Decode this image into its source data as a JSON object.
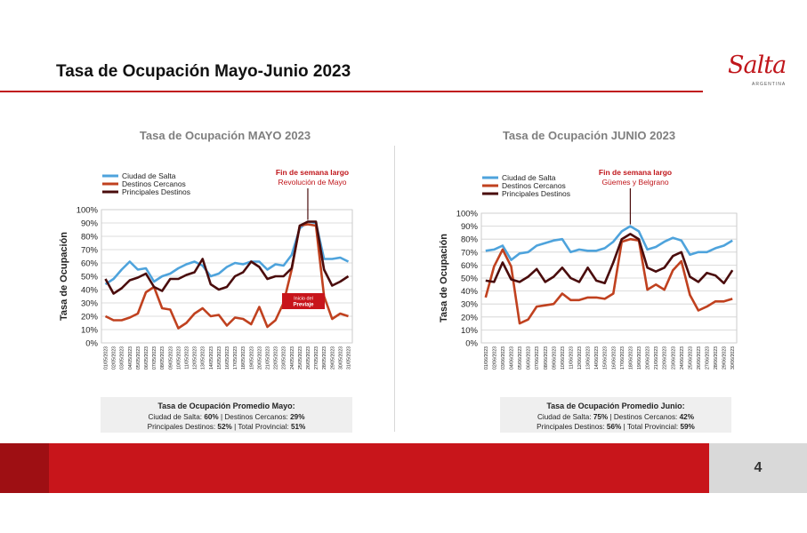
{
  "slide": {
    "title": "Tasa de Ocupación Mayo-Junio 2023",
    "page_number": "4",
    "logo_text": "Salta",
    "logo_subtext": "ARGENTINA",
    "colors": {
      "accent": "#c0161b",
      "footer": "#c8151b",
      "footer_dark": "#9e0f13"
    }
  },
  "chart_data": [
    {
      "type": "line",
      "title": "Tasa de Ocupación MAYO 2023",
      "ylabel": "Tasa de Ocupación",
      "ylim": [
        0,
        100
      ],
      "yticks": [
        "0%",
        "10%",
        "20%",
        "30%",
        "40%",
        "50%",
        "60%",
        "70%",
        "80%",
        "90%",
        "100%"
      ],
      "categories": [
        "01/05/2023",
        "02/05/2023",
        "03/05/2023",
        "04/05/2023",
        "05/05/2023",
        "06/05/2023",
        "07/05/2023",
        "08/05/2023",
        "09/05/2023",
        "10/05/2023",
        "11/05/2023",
        "12/05/2023",
        "13/05/2023",
        "14/05/2023",
        "15/05/2023",
        "16/05/2023",
        "17/05/2023",
        "18/05/2023",
        "19/05/2023",
        "20/05/2023",
        "21/05/2023",
        "22/05/2023",
        "23/05/2023",
        "24/05/2023",
        "25/05/2023",
        "26/05/2023",
        "27/05/2023",
        "28/05/2023",
        "29/05/2023",
        "30/05/2023",
        "31/05/2023"
      ],
      "series": [
        {
          "name": "Ciudad de Salta",
          "color": "#4ea3dc",
          "values": [
            44,
            48,
            55,
            61,
            55,
            56,
            46,
            50,
            52,
            56,
            59,
            61,
            58,
            50,
            52,
            57,
            60,
            59,
            61,
            61,
            55,
            59,
            58,
            66,
            86,
            91,
            90,
            63,
            63,
            64,
            61
          ]
        },
        {
          "name": "Destinos Cercanos",
          "color": "#c0411f",
          "values": [
            20,
            17,
            17,
            19,
            22,
            38,
            42,
            26,
            25,
            11,
            15,
            22,
            26,
            20,
            21,
            13,
            19,
            18,
            14,
            27,
            12,
            17,
            30,
            55,
            88,
            89,
            88,
            35,
            18,
            22,
            20
          ]
        },
        {
          "name": "Principales Destinos",
          "color": "#4a0c0c",
          "values": [
            48,
            37,
            41,
            47,
            49,
            52,
            42,
            39,
            48,
            48,
            51,
            53,
            63,
            44,
            40,
            42,
            50,
            53,
            61,
            57,
            48,
            50,
            50,
            56,
            88,
            91,
            91,
            55,
            43,
            46,
            50
          ]
        }
      ],
      "annotation": {
        "title": "Fin de semana largo",
        "subtitle": "Revolución de Mayo",
        "box_line1": "Inicio del",
        "box_line2": "Previaje"
      },
      "summary": {
        "title": "Tasa de Ocupación Promedio Mayo:",
        "line1_a": "Ciudad de Salta: ",
        "line1_b": "60%",
        "line1_c": "  |  Destinos Cercanos: ",
        "line1_d": "29%",
        "line2_a": "Principales Destinos: ",
        "line2_b": "52%",
        "line2_c": "  |  Total Provincial: ",
        "line2_d": "51%"
      }
    },
    {
      "type": "line",
      "title": "Tasa de Ocupación JUNIO 2023",
      "ylabel": "Tasa de Ocupación",
      "ylim": [
        0,
        100
      ],
      "yticks": [
        "0%",
        "10%",
        "20%",
        "30%",
        "40%",
        "50%",
        "60%",
        "70%",
        "80%",
        "90%",
        "100%"
      ],
      "categories": [
        "01/06/2023",
        "02/06/2023",
        "03/06/2023",
        "04/06/2023",
        "05/06/2023",
        "06/06/2023",
        "07/06/2023",
        "08/06/2023",
        "09/06/2023",
        "10/06/2023",
        "11/06/2023",
        "12/06/2023",
        "13/06/2023",
        "14/06/2023",
        "15/06/2023",
        "16/06/2023",
        "17/06/2023",
        "18/06/2023",
        "19/06/2023",
        "20/06/2023",
        "21/06/2023",
        "22/06/2023",
        "23/06/2023",
        "24/06/2023",
        "25/06/2023",
        "26/06/2023",
        "27/06/2023",
        "28/06/2023",
        "29/06/2023",
        "30/06/2023"
      ],
      "series": [
        {
          "name": "Ciudad de Salta",
          "color": "#4ea3dc",
          "values": [
            71,
            72,
            75,
            64,
            69,
            70,
            75,
            77,
            79,
            80,
            70,
            72,
            71,
            71,
            73,
            78,
            86,
            90,
            86,
            72,
            74,
            78,
            81,
            79,
            68,
            70,
            70,
            73,
            75,
            79
          ]
        },
        {
          "name": "Destinos Cercanos",
          "color": "#c0411f",
          "values": [
            35,
            59,
            72,
            59,
            15,
            18,
            28,
            29,
            30,
            38,
            33,
            33,
            35,
            35,
            34,
            38,
            78,
            80,
            79,
            41,
            45,
            41,
            56,
            63,
            37,
            25,
            28,
            32,
            32,
            34
          ]
        },
        {
          "name": "Principales Destinos",
          "color": "#4a0c0c",
          "values": [
            48,
            47,
            62,
            49,
            47,
            51,
            57,
            47,
            51,
            58,
            50,
            47,
            58,
            48,
            46,
            62,
            80,
            84,
            80,
            58,
            55,
            58,
            67,
            70,
            51,
            47,
            54,
            52,
            46,
            56
          ]
        }
      ],
      "annotation": {
        "title": "Fin de semana largo",
        "subtitle": "Güemes y Belgrano"
      },
      "summary": {
        "title": "Tasa de Ocupación Promedio Junio:",
        "line1_a": "Ciudad de Salta: ",
        "line1_b": "75%",
        "line1_c": "  |  Destinos Cercanos: ",
        "line1_d": "42%",
        "line2_a": "Principales Destinos: ",
        "line2_b": "56%",
        "line2_c": "  |  Total Provincial: ",
        "line2_d": "59%"
      }
    }
  ]
}
